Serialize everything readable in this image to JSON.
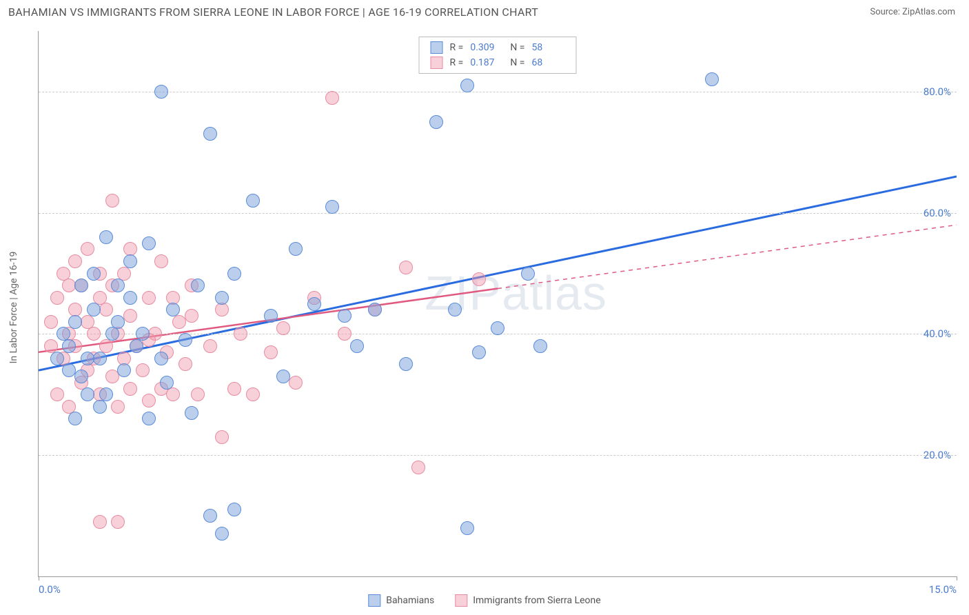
{
  "header": {
    "title": "BAHAMIAN VS IMMIGRANTS FROM SIERRA LEONE IN LABOR FORCE | AGE 16-19 CORRELATION CHART",
    "source": "Source: ZipAtlas.com"
  },
  "chart": {
    "type": "scatter",
    "ylabel": "In Labor Force | Age 16-19",
    "xlim": [
      0,
      15
    ],
    "ylim": [
      0,
      90
    ],
    "xticks": [
      {
        "val": 0,
        "label": "0.0%"
      },
      {
        "val": 15,
        "label": "15.0%"
      }
    ],
    "yticks": [
      {
        "val": 20,
        "label": "20.0%"
      },
      {
        "val": 40,
        "label": "40.0%"
      },
      {
        "val": 60,
        "label": "60.0%"
      },
      {
        "val": 80,
        "label": "80.0%"
      }
    ],
    "background_color": "#ffffff",
    "grid_color": "#cccccc",
    "marker_radius": 10,
    "series": {
      "blue": {
        "name": "Bahamians",
        "fill": "rgba(120,160,220,0.5)",
        "stroke": "#5a8bd8",
        "R": "0.309",
        "N": "58",
        "trend": {
          "x1": 0,
          "y1": 34,
          "x2": 15,
          "y2": 66,
          "dash_after_x": 15,
          "color": "#2a6be0",
          "width": 3
        },
        "points": [
          [
            0.3,
            36
          ],
          [
            0.4,
            40
          ],
          [
            0.5,
            34
          ],
          [
            0.5,
            38
          ],
          [
            0.6,
            26
          ],
          [
            0.6,
            42
          ],
          [
            0.7,
            33
          ],
          [
            0.8,
            36
          ],
          [
            0.8,
            30
          ],
          [
            0.9,
            44
          ],
          [
            1.0,
            36
          ],
          [
            1.0,
            28
          ],
          [
            1.1,
            56
          ],
          [
            1.2,
            40
          ],
          [
            1.3,
            48
          ],
          [
            1.4,
            34
          ],
          [
            1.5,
            52
          ],
          [
            1.6,
            38
          ],
          [
            1.8,
            55
          ],
          [
            1.8,
            26
          ],
          [
            2.0,
            80
          ],
          [
            2.0,
            36
          ],
          [
            2.2,
            44
          ],
          [
            2.4,
            39
          ],
          [
            2.5,
            27
          ],
          [
            2.8,
            73
          ],
          [
            2.8,
            10
          ],
          [
            3.0,
            7
          ],
          [
            3.0,
            46
          ],
          [
            3.2,
            50
          ],
          [
            3.2,
            11
          ],
          [
            3.5,
            62
          ],
          [
            3.8,
            43
          ],
          [
            4.0,
            33
          ],
          [
            4.2,
            54
          ],
          [
            4.5,
            45
          ],
          [
            4.8,
            61
          ],
          [
            5.0,
            43
          ],
          [
            5.2,
            38
          ],
          [
            5.5,
            44
          ],
          [
            6.0,
            35
          ],
          [
            6.5,
            75
          ],
          [
            6.8,
            44
          ],
          [
            7.0,
            81
          ],
          [
            7.0,
            8
          ],
          [
            7.2,
            37
          ],
          [
            7.5,
            41
          ],
          [
            8.0,
            50
          ],
          [
            8.2,
            38
          ],
          [
            11.0,
            82
          ],
          [
            0.7,
            48
          ],
          [
            0.9,
            50
          ],
          [
            1.1,
            30
          ],
          [
            1.3,
            42
          ],
          [
            1.5,
            46
          ],
          [
            1.7,
            40
          ],
          [
            2.1,
            32
          ],
          [
            2.6,
            48
          ]
        ]
      },
      "pink": {
        "name": "Immigrants from Sierra Leone",
        "fill": "rgba(240,150,170,0.45)",
        "stroke": "#e88ba0",
        "R": "0.187",
        "N": "68",
        "trend": {
          "x1": 0,
          "y1": 37,
          "x2": 15,
          "y2": 58,
          "dash_after_x": 7.5,
          "color": "#e05a80",
          "width": 2.5
        },
        "points": [
          [
            0.2,
            38
          ],
          [
            0.2,
            42
          ],
          [
            0.3,
            46
          ],
          [
            0.3,
            30
          ],
          [
            0.4,
            36
          ],
          [
            0.4,
            50
          ],
          [
            0.5,
            40
          ],
          [
            0.5,
            28
          ],
          [
            0.6,
            44
          ],
          [
            0.6,
            38
          ],
          [
            0.7,
            32
          ],
          [
            0.7,
            48
          ],
          [
            0.8,
            42
          ],
          [
            0.8,
            34
          ],
          [
            0.9,
            36
          ],
          [
            0.9,
            40
          ],
          [
            1.0,
            46
          ],
          [
            1.0,
            30
          ],
          [
            1.1,
            38
          ],
          [
            1.1,
            44
          ],
          [
            1.2,
            62
          ],
          [
            1.2,
            33
          ],
          [
            1.3,
            28
          ],
          [
            1.3,
            40
          ],
          [
            1.4,
            50
          ],
          [
            1.4,
            36
          ],
          [
            1.5,
            31
          ],
          [
            1.5,
            43
          ],
          [
            1.6,
            38
          ],
          [
            1.7,
            34
          ],
          [
            1.8,
            46
          ],
          [
            1.8,
            29
          ],
          [
            1.9,
            40
          ],
          [
            2.0,
            31
          ],
          [
            2.0,
            52
          ],
          [
            2.1,
            37
          ],
          [
            2.2,
            30
          ],
          [
            2.3,
            42
          ],
          [
            2.4,
            35
          ],
          [
            2.5,
            48
          ],
          [
            2.6,
            30
          ],
          [
            2.8,
            38
          ],
          [
            3.0,
            23
          ],
          [
            3.0,
            44
          ],
          [
            3.2,
            31
          ],
          [
            3.3,
            40
          ],
          [
            3.5,
            30
          ],
          [
            3.8,
            37
          ],
          [
            4.0,
            41
          ],
          [
            4.2,
            32
          ],
          [
            4.5,
            46
          ],
          [
            4.8,
            79
          ],
          [
            5.0,
            40
          ],
          [
            5.5,
            44
          ],
          [
            6.0,
            51
          ],
          [
            6.2,
            18
          ],
          [
            7.2,
            49
          ],
          [
            1.0,
            9
          ],
          [
            1.3,
            9
          ],
          [
            0.5,
            48
          ],
          [
            0.6,
            52
          ],
          [
            0.8,
            54
          ],
          [
            1.0,
            50
          ],
          [
            1.2,
            48
          ],
          [
            1.5,
            54
          ],
          [
            1.8,
            39
          ],
          [
            2.2,
            46
          ],
          [
            2.5,
            43
          ]
        ]
      }
    },
    "watermark": "ZIPatlas",
    "legend_top": {
      "rows": [
        {
          "color_fill": "rgba(120,160,220,0.5)",
          "color_stroke": "#5a8bd8",
          "r_label": "R =",
          "r_val": "0.309",
          "n_label": "N =",
          "n_val": "58"
        },
        {
          "color_fill": "rgba(240,150,170,0.45)",
          "color_stroke": "#e88ba0",
          "r_label": "R =",
          "r_val": "0.187",
          "n_label": "N =",
          "n_val": "68"
        }
      ]
    },
    "legend_bottom": [
      {
        "color_fill": "rgba(120,160,220,0.5)",
        "color_stroke": "#5a8bd8",
        "label": "Bahamians"
      },
      {
        "color_fill": "rgba(240,150,170,0.45)",
        "color_stroke": "#e88ba0",
        "label": "Immigrants from Sierra Leone"
      }
    ]
  }
}
